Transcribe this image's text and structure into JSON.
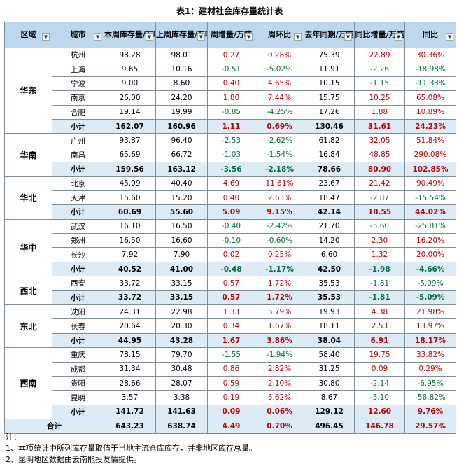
{
  "title": "表1：建材社会库存量统计表",
  "headers": [
    "区域",
    "城市",
    "本周库存量/万吨",
    "上周库存量/万吨",
    "周增量/万吨",
    "周环比",
    "去年同期/万吨",
    "同比增量/万吨",
    "同比"
  ],
  "filter_icon": "dropdown-arrow-icon",
  "regions": [
    {
      "name": "华东",
      "rows": [
        [
          "杭州",
          "98.28",
          "98.01",
          "0.27",
          "0.28%",
          "75.39",
          "22.89",
          "30.36%"
        ],
        [
          "上海",
          "9.65",
          "10.16",
          "-0.51",
          "-5.02%",
          "11.91",
          "-2.26",
          "-18.98%"
        ],
        [
          "宁波",
          "9.00",
          "8.60",
          "0.40",
          "4.65%",
          "10.15",
          "-1.15",
          "-11.33%"
        ],
        [
          "南京",
          "26.00",
          "24.20",
          "1.80",
          "7.44%",
          "15.75",
          "10.25",
          "65.08%"
        ],
        [
          "合肥",
          "19.14",
          "19.99",
          "-0.85",
          "-4.25%",
          "17.26",
          "1.88",
          "10.89%"
        ]
      ],
      "subtotal": [
        "小计",
        "162.07",
        "160.96",
        "1.11",
        "0.69%",
        "130.46",
        "31.61",
        "24.23%"
      ]
    },
    {
      "name": "华南",
      "rows": [
        [
          "广州",
          "93.87",
          "96.40",
          "-2.53",
          "-2.62%",
          "61.82",
          "32.05",
          "51.84%"
        ],
        [
          "南昌",
          "65.69",
          "66.72",
          "-1.03",
          "-1.54%",
          "16.84",
          "48.85",
          "290.08%"
        ]
      ],
      "subtotal": [
        "小计",
        "159.56",
        "163.12",
        "-3.56",
        "-2.18%",
        "78.66",
        "80.90",
        "102.85%"
      ]
    },
    {
      "name": "华北",
      "rows": [
        [
          "北京",
          "45.09",
          "40.40",
          "4.69",
          "11.61%",
          "23.67",
          "21.42",
          "90.49%"
        ],
        [
          "天津",
          "15.60",
          "15.20",
          "0.40",
          "2.63%",
          "18.47",
          "-2.87",
          "-15.54%"
        ]
      ],
      "subtotal": [
        "小计",
        "60.69",
        "55.60",
        "5.09",
        "9.15%",
        "42.14",
        "18.55",
        "44.02%"
      ]
    },
    {
      "name": "华中",
      "rows": [
        [
          "武汉",
          "16.10",
          "16.50",
          "-0.40",
          "-2.42%",
          "21.70",
          "-5.60",
          "-25.81%"
        ],
        [
          "郑州",
          "16.50",
          "16.60",
          "-0.10",
          "-0.60%",
          "14.20",
          "2.30",
          "16.20%"
        ],
        [
          "长沙",
          "7.92",
          "7.90",
          "0.02",
          "0.25%",
          "6.60",
          "1.32",
          "20.00%"
        ]
      ],
      "subtotal": [
        "小计",
        "40.52",
        "41.00",
        "-0.48",
        "-1.17%",
        "42.50",
        "-1.98",
        "-4.66%"
      ]
    },
    {
      "name": "西北",
      "rows": [
        [
          "西安",
          "33.72",
          "33.15",
          "0.57",
          "1.72%",
          "35.53",
          "-1.81",
          "-5.09%"
        ]
      ],
      "subtotal": [
        "小计",
        "33.72",
        "33.15",
        "0.57",
        "1.72%",
        "35.53",
        "-1.81",
        "-5.09%"
      ]
    },
    {
      "name": "东北",
      "rows": [
        [
          "沈阳",
          "24.31",
          "22.98",
          "1.33",
          "5.79%",
          "19.93",
          "4.38",
          "21.98%"
        ],
        [
          "长春",
          "20.64",
          "20.30",
          "0.34",
          "1.67%",
          "18.11",
          "2.53",
          "13.97%"
        ]
      ],
      "subtotal": [
        "小计",
        "44.95",
        "43.28",
        "1.67",
        "3.86%",
        "38.04",
        "6.91",
        "18.17%"
      ]
    },
    {
      "name": "西南",
      "rows": [
        [
          "重庆",
          "78.15",
          "79.70",
          "-1.55",
          "-1.94%",
          "58.40",
          "19.75",
          "33.82%"
        ],
        [
          "成都",
          "31.34",
          "30.48",
          "0.86",
          "2.82%",
          "31.25",
          "0.09",
          "0.29%"
        ],
        [
          "贵阳",
          "28.66",
          "28.07",
          "0.59",
          "2.10%",
          "30.80",
          "-2.14",
          "-6.95%"
        ],
        [
          "昆明",
          "3.57",
          "3.38",
          "0.19",
          "5.62%",
          "8.67",
          "-5.10",
          "-58.82%"
        ]
      ],
      "subtotal": [
        "小计",
        "141.72",
        "141.63",
        "0.09",
        "0.06%",
        "129.12",
        "12.60",
        "9.76%"
      ]
    }
  ],
  "total": [
    "合计",
    "643.23",
    "638.74",
    "4.49",
    "0.70%",
    "496.45",
    "146.78",
    "29.57%"
  ],
  "notes": [
    "注：",
    "1、本项统计中所列库存量取值于当地主流仓库库存，并非地区库存总量。",
    "2、昆明地区数据由云南能投友情提供。"
  ],
  "colors": {
    "header_bg": "#bdd7ee",
    "subtotal_bg": "#ddebf7",
    "positive": "#c00000",
    "negative": "#00703c",
    "border": "#7f8c99"
  }
}
